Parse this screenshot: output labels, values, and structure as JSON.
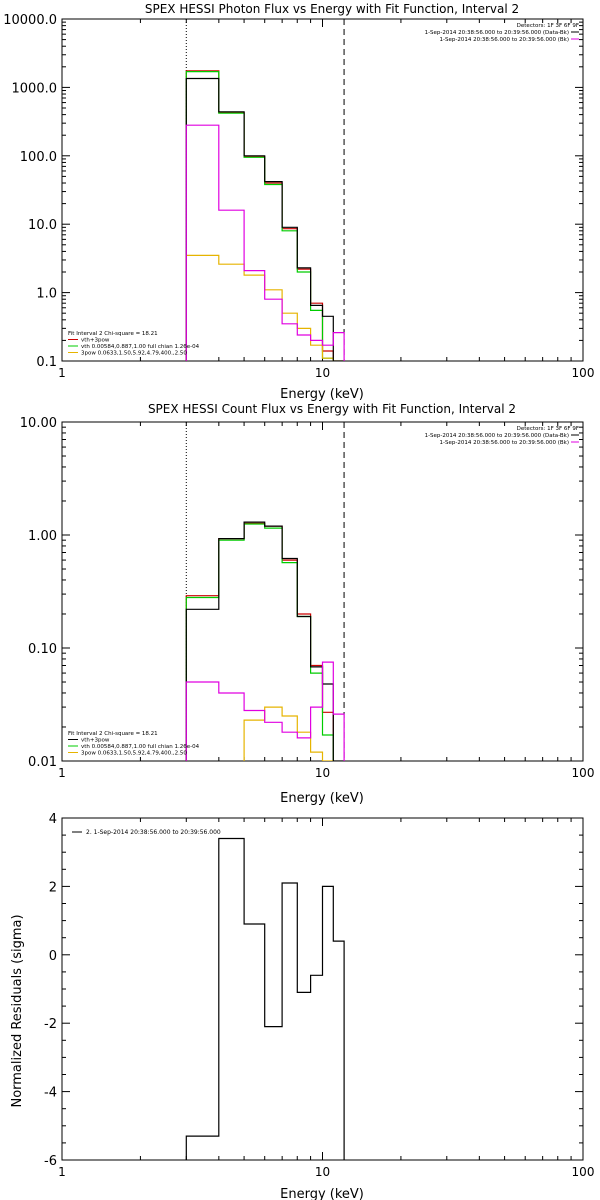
{
  "colors": {
    "black": "#000000",
    "red": "#cc0000",
    "green": "#00cc00",
    "magenta": "#e000e0",
    "gold": "#e6b400"
  },
  "chart_data": [
    {
      "type": "line",
      "title": "SPEX HESSI Photon Flux vs Energy with Fit Function, Interval 2",
      "xlabel": "Energy (keV)",
      "ylabel": "",
      "xscale": "log",
      "yscale": "log",
      "xlim": [
        1,
        100
      ],
      "ylim": [
        0.1,
        10000
      ],
      "x_ticks": [
        1,
        10,
        100
      ],
      "x_tick_labels": [
        "1",
        "10",
        "100"
      ],
      "y_ticks": [
        0.1,
        1,
        10,
        100,
        1000,
        10000
      ],
      "y_tick_labels": [
        "0.1",
        "1.0",
        "10.0",
        "100.0",
        "1000.0",
        "10000.0"
      ],
      "vlines": [
        {
          "x": 3.0,
          "style": "dotted"
        },
        {
          "x": 12.1,
          "style": "dashed"
        }
      ],
      "legend_top": [
        {
          "text": "Detectors: 1F 3F 6F 9F",
          "color": "#000000",
          "swatch": false
        },
        {
          "text": "1-Sep-2014 20:38:56.000 to 20:39:56.000 (Data-Bk)",
          "color": "#000000",
          "swatch": true
        },
        {
          "text": "1-Sep-2014 20:38:56.000 to 20:39:56.000 (Bk)",
          "color": "#e000e0",
          "swatch": true
        }
      ],
      "legend_bottom": [
        {
          "text": "Fit Interval 2   Chi-square = 18.21",
          "color": "#000000",
          "swatch": false
        },
        {
          "text": "vth+3pow",
          "color": "#cc0000",
          "swatch": true
        },
        {
          "text": "vth 0.00584,0.887,1.00  full chian 1.26e-04",
          "color": "#00cc00",
          "swatch": true
        },
        {
          "text": "3pow 0.0633,1.50,5.92,4.79,400.,2.50",
          "color": "#e6b400",
          "swatch": true
        }
      ],
      "bin_edges": [
        3.0,
        4.0,
        5.0,
        6.0,
        7.0,
        8.0,
        9.0,
        10.0,
        11.0,
        12.1
      ],
      "series": [
        {
          "name": "vth+3pow",
          "color": "#cc0000",
          "values": [
            1750,
            430,
            97,
            40,
            8.6,
            2.2,
            0.7,
            0.14,
            null
          ]
        },
        {
          "name": "vth",
          "color": "#00cc00",
          "values": [
            1700,
            420,
            95,
            38,
            8.0,
            2.0,
            0.55,
            0.11,
            null
          ]
        },
        {
          "name": "3pow",
          "color": "#e6b400",
          "values": [
            3.5,
            2.6,
            1.8,
            1.1,
            0.5,
            0.3,
            0.17,
            0.11,
            0.1
          ]
        },
        {
          "name": "Data-Bk",
          "color": "#000000",
          "values": [
            1350,
            440,
            100,
            42,
            9.0,
            2.3,
            0.65,
            0.45,
            0.1
          ]
        },
        {
          "name": "Bk",
          "color": "#e000e0",
          "values": [
            280,
            16,
            2.1,
            0.8,
            0.35,
            0.24,
            0.2,
            0.17,
            0.26
          ]
        }
      ]
    },
    {
      "type": "line",
      "title": "SPEX HESSI Count Flux vs Energy with Fit Function, Interval 2",
      "xlabel": "Energy (keV)",
      "ylabel": "",
      "xscale": "log",
      "yscale": "log",
      "xlim": [
        1,
        100
      ],
      "ylim": [
        0.01,
        10
      ],
      "x_ticks": [
        1,
        10,
        100
      ],
      "x_tick_labels": [
        "1",
        "10",
        "100"
      ],
      "y_ticks": [
        0.01,
        0.1,
        1,
        10
      ],
      "y_tick_labels": [
        "0.01",
        "0.10",
        "1.00",
        "10.00"
      ],
      "vlines": [
        {
          "x": 3.0,
          "style": "dotted"
        },
        {
          "x": 12.1,
          "style": "dashed"
        }
      ],
      "legend_top": [
        {
          "text": "Detectors: 1F 3F 6F 9F",
          "color": "#000000",
          "swatch": false
        },
        {
          "text": "1-Sep-2014 20:38:56.000 to 20:39:56.000 (Data-Bk)",
          "color": "#000000",
          "swatch": true
        },
        {
          "text": "1-Sep-2014 20:38:56.000 to 20:39:56.000 (Bk)",
          "color": "#e000e0",
          "swatch": true
        }
      ],
      "legend_bottom": [
        {
          "text": "Fit Interval 2   Chi-square = 18.21",
          "color": "#000000",
          "swatch": false
        },
        {
          "text": "vth+3pow",
          "color": "#000000",
          "swatch": true
        },
        {
          "text": "vth 0.00584,0.887,1.00  full chian 1.26e-04",
          "color": "#00cc00",
          "swatch": true
        },
        {
          "text": "3pow 0.0633,1.50,5.92,4.79,400.,2.50",
          "color": "#e6b400",
          "swatch": true
        }
      ],
      "bin_edges": [
        3.0,
        4.0,
        5.0,
        6.0,
        7.0,
        8.0,
        9.0,
        10.0,
        11.0,
        12.1
      ],
      "series": [
        {
          "name": "vth+3pow",
          "color": "#cc0000",
          "values": [
            0.29,
            0.93,
            1.27,
            1.2,
            0.6,
            0.2,
            0.07,
            0.027,
            null
          ]
        },
        {
          "name": "vth",
          "color": "#00cc00",
          "values": [
            0.28,
            0.9,
            1.25,
            1.15,
            0.57,
            0.19,
            0.06,
            0.017,
            null
          ]
        },
        {
          "name": "3pow",
          "color": "#e6b400",
          "values": [
            null,
            null,
            0.023,
            0.03,
            0.025,
            0.018,
            0.012,
            0.01,
            null
          ]
        },
        {
          "name": "Data-Bk",
          "color": "#000000",
          "values": [
            0.22,
            0.93,
            1.3,
            1.2,
            0.62,
            0.19,
            0.068,
            0.048,
            0.01
          ]
        },
        {
          "name": "Bk",
          "color": "#e000e0",
          "values": [
            0.05,
            0.04,
            0.028,
            0.022,
            0.018,
            0.016,
            0.03,
            0.075,
            0.026
          ]
        }
      ]
    },
    {
      "type": "line",
      "title": "",
      "xlabel": "Energy (keV)",
      "ylabel": "Normalized Residuals (sigma)",
      "xscale": "log",
      "yscale": "linear",
      "xlim": [
        1,
        100
      ],
      "ylim": [
        -6,
        4
      ],
      "x_ticks": [
        1,
        10,
        100
      ],
      "x_tick_labels": [
        "1",
        "10",
        "100"
      ],
      "y_ticks": [
        -6,
        -4,
        -2,
        0,
        2,
        4
      ],
      "y_tick_labels": [
        "-6",
        "-4",
        "-2",
        "0",
        "2",
        "4"
      ],
      "vlines": [],
      "legend_top": [
        {
          "text": "2. 1-Sep-2014 20:38:56.000 to 20:39:56.000",
          "color": "#000000",
          "swatch": true
        }
      ],
      "legend_bottom": [],
      "bin_edges": [
        3.0,
        4.0,
        5.0,
        6.0,
        7.0,
        8.0,
        9.0,
        10.0,
        11.0,
        12.1
      ],
      "series": [
        {
          "name": "2. 1-Sep-2014 20:38:56.000 to 20:39:56.000",
          "color": "#000000",
          "values": [
            -5.3,
            3.4,
            0.9,
            -2.1,
            2.1,
            -1.1,
            -0.6,
            2.0,
            0.4
          ]
        }
      ]
    }
  ]
}
